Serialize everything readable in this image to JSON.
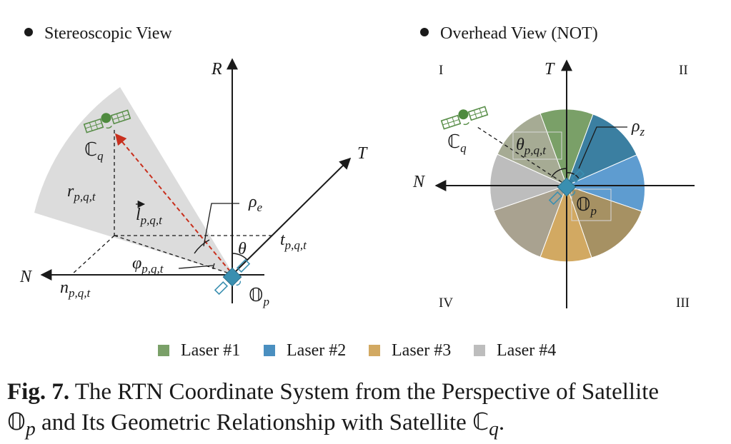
{
  "left_panel": {
    "title": "Stereoscopic View",
    "axes": {
      "r": "R",
      "t": "T",
      "n": "N"
    },
    "labels": {
      "cq": "ℂ",
      "cq_sub": "q",
      "op": "𝕆",
      "op_sub": "p",
      "rpqt": "r",
      "npqt": "n",
      "tpqt": "t",
      "pqt_sub": "p,q,t",
      "lpqt": "l",
      "rho_e": "ρ",
      "rho_e_sub": "e",
      "theta": "θ",
      "phi": "φ"
    }
  },
  "right_panel": {
    "title": "Overhead View (NOT)",
    "axes": {
      "t": "T",
      "n": "N"
    },
    "quadrants": [
      "I",
      "II",
      "III",
      "IV"
    ],
    "labels": {
      "cq": "ℂ",
      "cq_sub": "q",
      "op": "𝕆",
      "op_sub": "p",
      "theta": "θ",
      "theta_sub": "p,q,t",
      "rho_z": "ρ",
      "rho_z_sub": "z"
    }
  },
  "legend": [
    {
      "label": "Laser #1",
      "color": "#7aa068"
    },
    {
      "label": "Laser #2",
      "color": "#4a8fc0"
    },
    {
      "label": "Laser #3",
      "color": "#d2a962"
    },
    {
      "label": "Laser #4",
      "color": "#bdbdbd"
    }
  ],
  "caption": {
    "prefix": "Fig. 7.",
    "line1": " The RTN Coordinate System from the Perspective of Satellite",
    "line2_a": "𝕆",
    "line2_a_sub": "p",
    "line2_b": " and Its Geometric Relationship with Satellite ",
    "line2_c": "ℂ",
    "line2_c_sub": "q",
    "line2_end": "."
  }
}
